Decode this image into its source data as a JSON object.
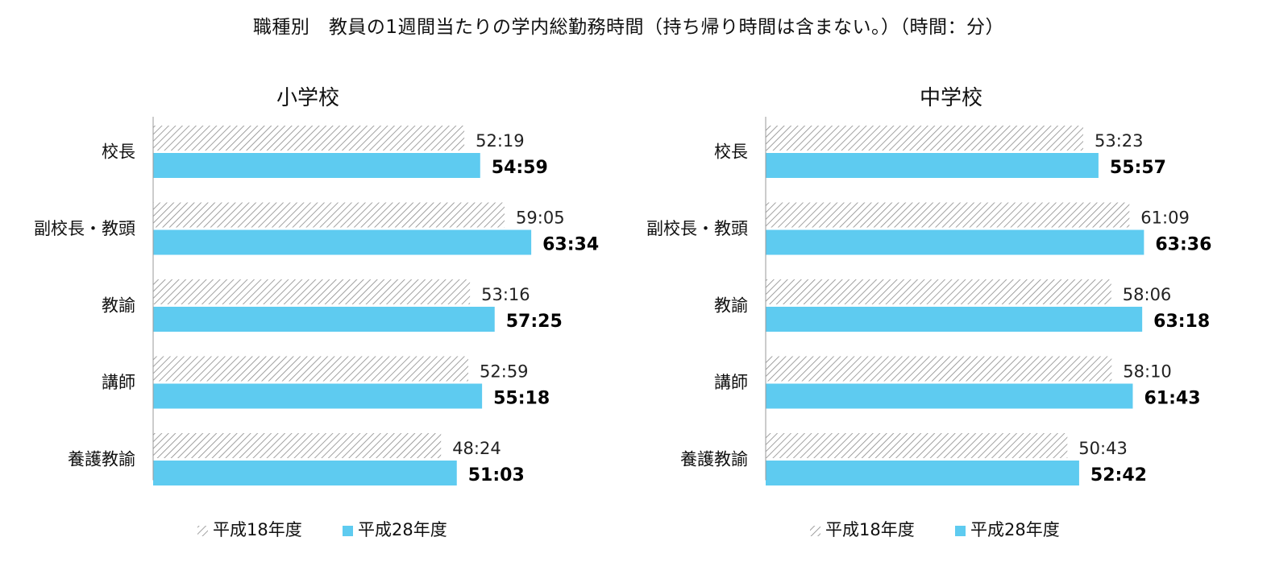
{
  "title": "職種別　教員の1週間当たりの学内総勤務時間（持ち帰り時間は含まない。）（時間：分）",
  "colors": {
    "new_series": "#5ECBF0",
    "old_series_hatch": "#8a8a8a",
    "axis": "#999999"
  },
  "chart_data": [
    {
      "type": "bar",
      "orientation": "horizontal",
      "title": "小学校",
      "categories": [
        "校長",
        "副校長・教頭",
        "教諭",
        "講師",
        "養護教諭"
      ],
      "series": [
        {
          "name": "平成18年度",
          "values": [
            52.3167,
            59.0833,
            53.2667,
            52.9833,
            48.4
          ],
          "labels": [
            "52:19",
            "59:05",
            "53:16",
            "52:59",
            "48:24"
          ]
        },
        {
          "name": "平成28年度",
          "values": [
            54.9833,
            63.5667,
            57.4167,
            55.3,
            51.05
          ],
          "labels": [
            "54:59",
            "63:34",
            "57:25",
            "55:18",
            "51:03"
          ]
        }
      ],
      "xlim": [
        0,
        69
      ],
      "legend": "bottom"
    },
    {
      "type": "bar",
      "orientation": "horizontal",
      "title": "中学校",
      "categories": [
        "校長",
        "副校長・教頭",
        "教諭",
        "講師",
        "養護教諭"
      ],
      "series": [
        {
          "name": "平成18年度",
          "values": [
            53.3833,
            61.15,
            58.1,
            58.1667,
            50.7167
          ],
          "labels": [
            "53:23",
            "61:09",
            "58:06",
            "58:10",
            "50:43"
          ]
        },
        {
          "name": "平成28年度",
          "values": [
            55.95,
            63.6,
            63.3,
            61.7167,
            52.7
          ],
          "labels": [
            "55:57",
            "63:36",
            "63:18",
            "61:43",
            "52:42"
          ]
        }
      ],
      "xlim": [
        0,
        69
      ],
      "legend": "bottom"
    }
  ]
}
